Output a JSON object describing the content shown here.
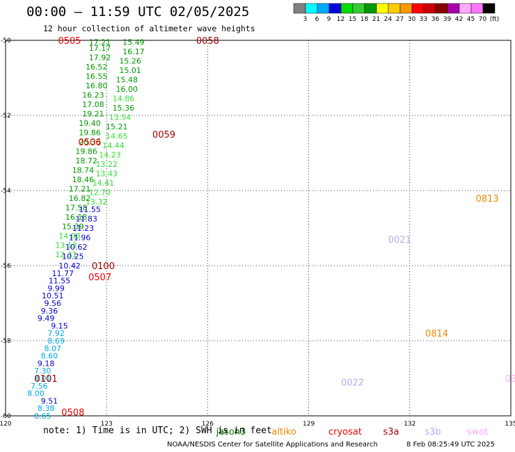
{
  "header": {
    "title": "00:00 – 11:59 UTC 02/05/2025",
    "subtitle": "12 hour collection of altimeter wave heights"
  },
  "colorbar": {
    "labels": [
      "3",
      "6",
      "9",
      "12",
      "15",
      "18",
      "21",
      "24",
      "27",
      "30",
      "33",
      "36",
      "39",
      "42",
      "45",
      "70",
      "(ft)"
    ],
    "colors": [
      "#808080",
      "#00ffff",
      "#00aaff",
      "#0000dd",
      "#00dd00",
      "#33cc33",
      "#009900",
      "#ffff00",
      "#ffcc00",
      "#ff9900",
      "#ff0000",
      "#cc0000",
      "#880000",
      "#aa00aa",
      "#ffaaff",
      "#ff77ff",
      "#000000"
    ]
  },
  "footer": {
    "note": "note: 1) Time is in UTC; 2) SWH is in feet",
    "credit": "NOAA/NESDIS Center for Satellite Applications and Research",
    "stamp": "8 Feb 08:25:49 UTC 2025",
    "legend": [
      {
        "name": "jason3",
        "color": "#007700"
      },
      {
        "name": "altiko",
        "color": "#ee8800"
      },
      {
        "name": "cryosat",
        "color": "#ee0000"
      },
      {
        "name": "s3a",
        "color": "#990000"
      },
      {
        "name": "s3b",
        "color": "#bbaaee"
      },
      {
        "name": "swot",
        "color": "#ffaaee"
      }
    ]
  },
  "chart_data": {
    "type": "scatter",
    "xlabel": "",
    "ylabel": "",
    "xlim": [
      120,
      135
    ],
    "ylim": [
      -60,
      -50
    ],
    "xticks": [
      "120",
      "123",
      "126",
      "129",
      "132",
      "135"
    ],
    "yticks": [
      "-50",
      "-52",
      "-54",
      "-56",
      "-58",
      "-60"
    ],
    "grid": true,
    "passes": [
      {
        "id": "0505",
        "color": "#ee0000",
        "x": 121.9,
        "y": -50.0
      },
      {
        "id": "0058",
        "color": "#990000",
        "x": 126.0,
        "y": -50.0
      },
      {
        "id": "0506",
        "color": "#ee0000",
        "x": 122.5,
        "y": -52.7
      },
      {
        "id": "0059",
        "color": "#990000",
        "x": 124.7,
        "y": -52.5
      },
      {
        "id": "0100",
        "color": "#990000",
        "x": 122.9,
        "y": -56.0
      },
      {
        "id": "0507",
        "color": "#ee0000",
        "x": 122.8,
        "y": -56.3
      },
      {
        "id": "0101",
        "color": "#990000",
        "x": 121.2,
        "y": -59.0
      },
      {
        "id": "0508",
        "color": "#ee0000",
        "x": 122.0,
        "y": -59.9
      },
      {
        "id": "0813",
        "color": "#ee8800",
        "x": 134.3,
        "y": -54.2
      },
      {
        "id": "0021",
        "color": "#bbaaee",
        "x": 131.7,
        "y": -55.3
      },
      {
        "id": "0814",
        "color": "#ee8800",
        "x": 132.8,
        "y": -57.8
      },
      {
        "id": "0022",
        "color": "#bbaaee",
        "x": 130.3,
        "y": -59.1
      },
      {
        "id": "03",
        "color": "#ffaaee",
        "x": 135.0,
        "y": -59.0
      }
    ],
    "points": [
      {
        "x": 122.8,
        "y": -50.05,
        "v": "17.21"
      },
      {
        "x": 122.8,
        "y": -50.2,
        "v": "17.17"
      },
      {
        "x": 122.8,
        "y": -50.45,
        "v": "17.92"
      },
      {
        "x": 122.7,
        "y": -50.7,
        "v": "16.52"
      },
      {
        "x": 122.7,
        "y": -50.95,
        "v": "16.55"
      },
      {
        "x": 122.7,
        "y": -51.2,
        "v": "16.80"
      },
      {
        "x": 122.6,
        "y": -51.45,
        "v": "16.23"
      },
      {
        "x": 122.6,
        "y": -51.7,
        "v": "17.08"
      },
      {
        "x": 122.6,
        "y": -51.95,
        "v": "19.21"
      },
      {
        "x": 122.5,
        "y": -52.2,
        "v": "19.40"
      },
      {
        "x": 122.5,
        "y": -52.45,
        "v": "19.86"
      },
      {
        "x": 122.5,
        "y": -52.7,
        "v": "20.33"
      },
      {
        "x": 122.4,
        "y": -52.95,
        "v": "19.86"
      },
      {
        "x": 122.4,
        "y": -53.2,
        "v": "18.72"
      },
      {
        "x": 122.3,
        "y": -53.45,
        "v": "18.74"
      },
      {
        "x": 122.3,
        "y": -53.7,
        "v": "18.46"
      },
      {
        "x": 122.2,
        "y": -53.95,
        "v": "17.21"
      },
      {
        "x": 122.2,
        "y": -54.2,
        "v": "16.82"
      },
      {
        "x": 122.1,
        "y": -54.45,
        "v": "17.58"
      },
      {
        "x": 122.1,
        "y": -54.7,
        "v": "16.18"
      },
      {
        "x": 122.0,
        "y": -54.95,
        "v": "15.39"
      },
      {
        "x": 121.9,
        "y": -55.2,
        "v": "14.98"
      },
      {
        "x": 121.8,
        "y": -55.45,
        "v": "13.13"
      },
      {
        "x": 121.8,
        "y": -55.7,
        "v": "12.31"
      },
      {
        "x": 123.8,
        "y": -50.05,
        "v": "15.49"
      },
      {
        "x": 123.8,
        "y": -50.3,
        "v": "16.17"
      },
      {
        "x": 123.7,
        "y": -50.55,
        "v": "15.26"
      },
      {
        "x": 123.7,
        "y": -50.8,
        "v": "15.01"
      },
      {
        "x": 123.6,
        "y": -51.05,
        "v": "15.48"
      },
      {
        "x": 123.6,
        "y": -51.3,
        "v": "16.00"
      },
      {
        "x": 123.5,
        "y": -51.55,
        "v": "14.86"
      },
      {
        "x": 123.5,
        "y": -51.8,
        "v": "15.36"
      },
      {
        "x": 123.4,
        "y": -52.05,
        "v": "13.54"
      },
      {
        "x": 123.3,
        "y": -52.3,
        "v": "15.21"
      },
      {
        "x": 123.3,
        "y": -52.55,
        "v": "14.65"
      },
      {
        "x": 123.2,
        "y": -52.8,
        "v": "14.44"
      },
      {
        "x": 123.1,
        "y": -53.05,
        "v": "14.23"
      },
      {
        "x": 123.0,
        "y": -53.3,
        "v": "13.22"
      },
      {
        "x": 123.0,
        "y": -53.55,
        "v": "13.43"
      },
      {
        "x": 122.9,
        "y": -53.8,
        "v": "14.41"
      },
      {
        "x": 122.8,
        "y": -54.05,
        "v": "12.70"
      },
      {
        "x": 122.7,
        "y": -54.3,
        "v": "13.32"
      },
      {
        "x": 122.5,
        "y": -54.5,
        "v": "11.55"
      },
      {
        "x": 122.4,
        "y": -54.75,
        "v": "11.83"
      },
      {
        "x": 122.3,
        "y": -55.0,
        "v": "11.23"
      },
      {
        "x": 122.2,
        "y": -55.25,
        "v": "11.96"
      },
      {
        "x": 122.1,
        "y": -55.5,
        "v": "10.62"
      },
      {
        "x": 122.0,
        "y": -55.75,
        "v": "10.25"
      },
      {
        "x": 121.9,
        "y": -56.0,
        "v": "10.42"
      },
      {
        "x": 121.7,
        "y": -56.2,
        "v": "11.77"
      },
      {
        "x": 121.6,
        "y": -56.4,
        "v": "11.55"
      },
      {
        "x": 121.5,
        "y": -56.6,
        "v": "9.99"
      },
      {
        "x": 121.4,
        "y": -56.8,
        "v": "10.51"
      },
      {
        "x": 121.4,
        "y": -57.0,
        "v": "9.56"
      },
      {
        "x": 121.3,
        "y": -57.2,
        "v": "9.36"
      },
      {
        "x": 121.2,
        "y": -57.4,
        "v": "9.49"
      },
      {
        "x": 121.6,
        "y": -57.6,
        "v": "9.15"
      },
      {
        "x": 121.5,
        "y": -57.8,
        "v": "7.92"
      },
      {
        "x": 121.5,
        "y": -58.0,
        "v": "8.69"
      },
      {
        "x": 121.4,
        "y": -58.2,
        "v": "8.07"
      },
      {
        "x": 121.3,
        "y": -58.4,
        "v": "8.60"
      },
      {
        "x": 121.2,
        "y": -58.6,
        "v": "9.18"
      },
      {
        "x": 121.1,
        "y": -58.8,
        "v": "7.30"
      },
      {
        "x": 121.1,
        "y": -59.0,
        "v": "8.01"
      },
      {
        "x": 121.0,
        "y": -59.2,
        "v": "7.56"
      },
      {
        "x": 120.9,
        "y": -59.4,
        "v": "8.00"
      },
      {
        "x": 121.3,
        "y": -59.6,
        "v": "9.51"
      },
      {
        "x": 121.2,
        "y": -59.8,
        "v": "8.38"
      },
      {
        "x": 121.1,
        "y": -60.0,
        "v": "8.65"
      }
    ]
  }
}
